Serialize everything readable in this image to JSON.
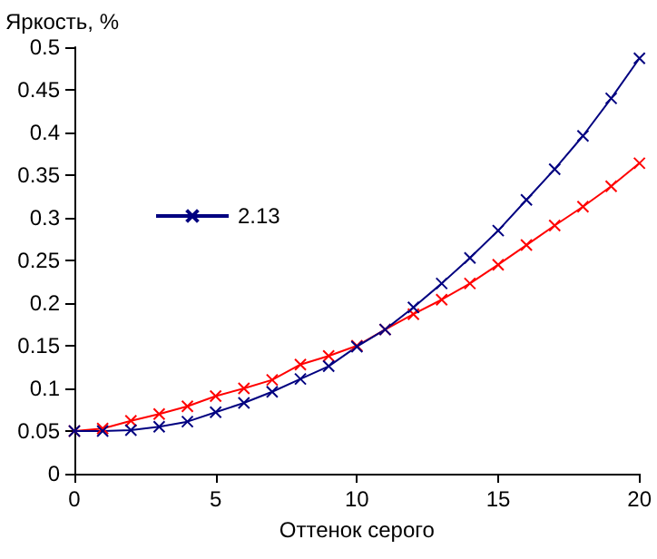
{
  "chart_data": {
    "type": "line",
    "ylabel": "Яркость, %",
    "xlabel": "Оттенок серого",
    "x": [
      0,
      1,
      2,
      3,
      4,
      5,
      6,
      7,
      8,
      9,
      10,
      11,
      12,
      13,
      14,
      15,
      16,
      17,
      18,
      19,
      20
    ],
    "series": [
      {
        "color": "#ff0000",
        "values": [
          0.05,
          0.053,
          0.062,
          0.07,
          0.079,
          0.091,
          0.1,
          0.11,
          0.128,
          0.138,
          0.15,
          0.169,
          0.187,
          0.204,
          0.223,
          0.245,
          0.268,
          0.291,
          0.313,
          0.337,
          0.364
        ]
      },
      {
        "name": "2.13",
        "color": "#000080",
        "values": [
          0.05,
          0.05,
          0.051,
          0.055,
          0.061,
          0.072,
          0.083,
          0.096,
          0.111,
          0.126,
          0.149,
          0.169,
          0.195,
          0.223,
          0.253,
          0.285,
          0.321,
          0.357,
          0.396,
          0.44,
          0.487
        ]
      }
    ],
    "xlim": [
      0,
      20
    ],
    "xticks": [
      0,
      5,
      10,
      15,
      20
    ],
    "ylim": [
      0,
      0.5
    ],
    "yticks": [
      0,
      0.05,
      0.1,
      0.15,
      0.2,
      0.25,
      0.3,
      0.35,
      0.4,
      0.45,
      0.5
    ],
    "grid": false,
    "legend": "left",
    "marker": "cross",
    "line_style": "solid"
  }
}
